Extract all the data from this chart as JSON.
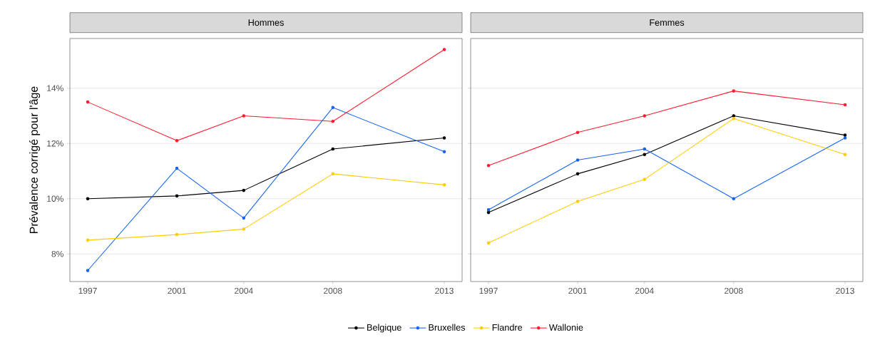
{
  "chart_data": [
    {
      "type": "line",
      "title": "Hommes",
      "ylabel": "Prévalence corrigé pour l'âge",
      "x": [
        1997,
        2001,
        2004,
        2008,
        2013
      ],
      "series": [
        {
          "name": "Belgique",
          "color": "#000000",
          "values": [
            10.0,
            10.1,
            10.3,
            11.8,
            12.2
          ]
        },
        {
          "name": "Bruxelles",
          "color": "#1464f4",
          "values": [
            7.4,
            11.1,
            9.3,
            13.3,
            11.7
          ]
        },
        {
          "name": "Flandre",
          "color": "#ffcc00",
          "values": [
            8.5,
            8.7,
            8.9,
            10.9,
            10.5
          ]
        },
        {
          "name": "Wallonie",
          "color": "#ff1a2e",
          "values": [
            13.5,
            12.1,
            13.0,
            12.8,
            15.4
          ]
        }
      ],
      "xlim": [
        1996.2,
        2013.8
      ],
      "xticks": [
        1997,
        2001,
        2004,
        2008,
        2013
      ],
      "ylim": [
        7.0,
        15.8
      ],
      "yticks": [
        {
          "value": 8,
          "label": "8%"
        },
        {
          "value": 10,
          "label": "10%"
        },
        {
          "value": 12,
          "label": "12%"
        },
        {
          "value": 14,
          "label": "14%"
        }
      ],
      "grid": "y",
      "legend": "bottom",
      "marker": "circle",
      "line_style": "solid"
    },
    {
      "type": "line",
      "title": "Femmes",
      "x": [
        1997,
        2001,
        2004,
        2008,
        2013
      ],
      "series": [
        {
          "color": "#000000",
          "values": [
            9.5,
            10.9,
            11.6,
            13.0,
            12.3
          ]
        },
        {
          "color": "#1464f4",
          "values": [
            9.6,
            11.4,
            11.8,
            10.0,
            12.2
          ]
        },
        {
          "color": "#ffcc00",
          "values": [
            8.4,
            9.9,
            10.7,
            12.9,
            11.6
          ]
        },
        {
          "color": "#ff1a2e",
          "values": [
            11.2,
            12.4,
            13.0,
            13.9,
            13.4
          ]
        }
      ],
      "xlim": [
        1996.2,
        2013.8
      ],
      "xticks": [
        1997,
        2001,
        2004,
        2008,
        2013
      ],
      "ylim": [
        7.0,
        15.8
      ],
      "yticks": [
        {
          "value": 8,
          "label": null
        },
        {
          "value": 10,
          "label": null
        },
        {
          "value": 12,
          "label": null
        },
        {
          "value": 14,
          "label": null
        }
      ],
      "grid": "y",
      "tick_labels": "x",
      "marker": "circle",
      "line_style": "solid"
    }
  ]
}
